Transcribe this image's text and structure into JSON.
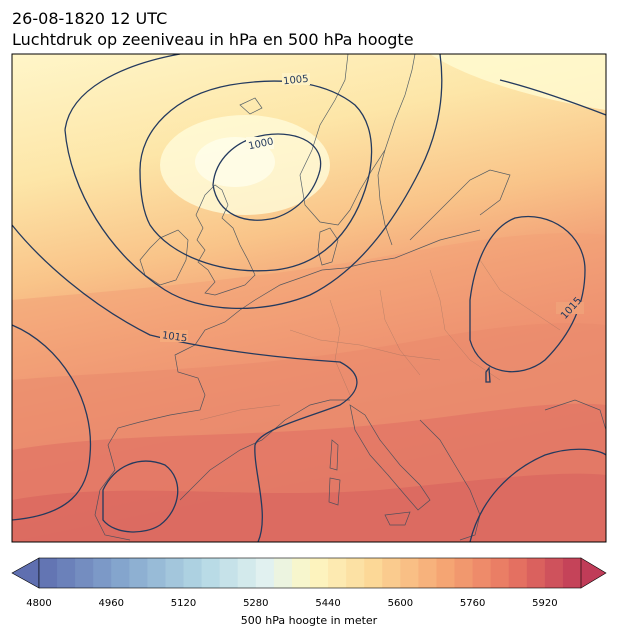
{
  "title": {
    "line1": "26-08-1820 12 UTC",
    "line2": "Luchtdruk op zeeniveau in hPa en 500 hPa hoogte"
  },
  "isobars": {
    "labels": [
      "1005",
      "1000",
      "1015",
      "1015"
    ],
    "color": "#243a5e"
  },
  "colorbar": {
    "label": "500 hPa hoogte in meter",
    "min": 4800,
    "max": 6000,
    "step": 40,
    "tick_labels": [
      "4800",
      "4960",
      "5120",
      "5280",
      "5440",
      "5600",
      "5760",
      "5920"
    ],
    "extend": "both"
  },
  "palette": {
    "low": "#5f6fb0",
    "mid": "#fdf6c4",
    "high": "#c4455f"
  }
}
